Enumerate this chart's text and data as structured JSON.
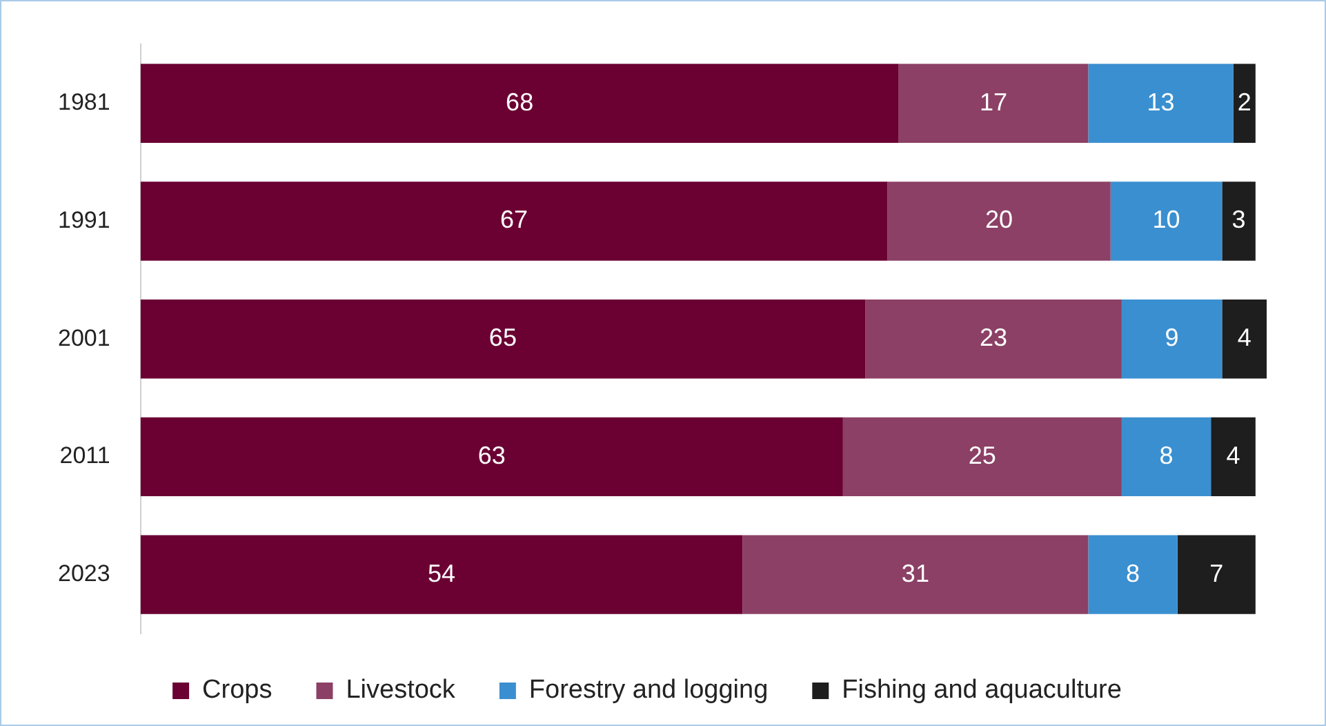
{
  "chart_data": {
    "type": "bar",
    "orientation": "horizontal",
    "stacked": true,
    "data_labels": true,
    "legend": "bottom",
    "grid": false,
    "categories": [
      "1981",
      "1991",
      "2001",
      "2011",
      "2023"
    ],
    "series": [
      {
        "name": "Crops",
        "color": "#6b0033",
        "values": [
          68,
          67,
          65,
          63,
          54
        ]
      },
      {
        "name": "Livestock",
        "color": "#8c4065",
        "values": [
          17,
          20,
          23,
          25,
          31
        ]
      },
      {
        "name": "Forestry and logging",
        "color": "#3a8fd0",
        "values": [
          13,
          10,
          9,
          8,
          8
        ]
      },
      {
        "name": "Fishing and aquaculture",
        "color": "#1e1e1e",
        "values": [
          2,
          3,
          4,
          4,
          7
        ]
      }
    ]
  }
}
